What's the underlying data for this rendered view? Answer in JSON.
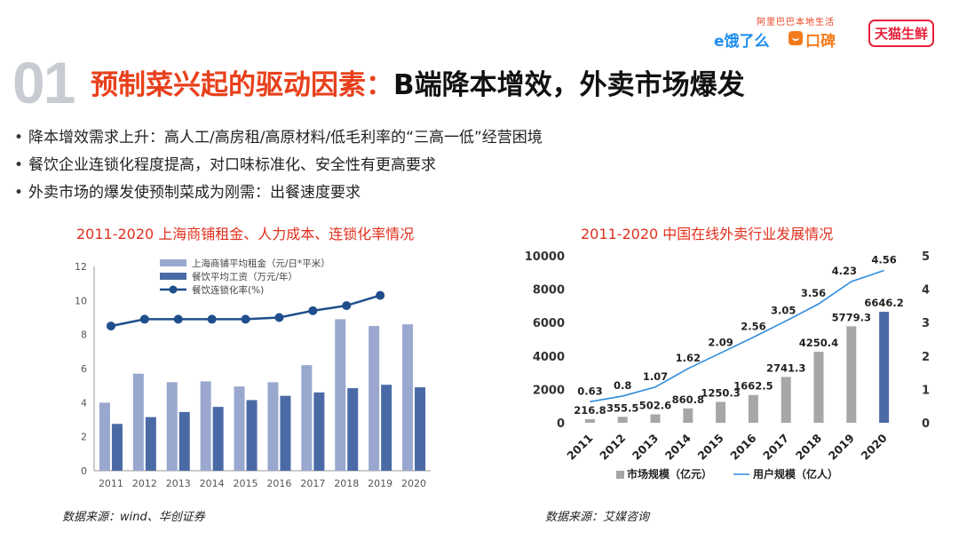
{
  "slide_number": "01",
  "title": {
    "red": "预制菜兴起的驱动因素：",
    "black": "B端降本增效，外卖市场爆发"
  },
  "logos": {
    "tagline": "阿里巴巴本地生活",
    "eleme": "饿了么",
    "koubei": "口碑",
    "tmall": "天猫生鲜"
  },
  "bullets": [
    "降本增效需求上升：高人工/高房租/高原材料/低毛利率的“三高一低”经营困境",
    "餐饮企业连锁化程度提高，对口味标准化、安全性有更高要求",
    "外卖市场的爆发使预制菜成为刚需：出餐速度要求"
  ],
  "bullet_mark": "•",
  "left_chart_title": "2011-2020 上海商铺租金、人力成本、连锁化率情况",
  "right_chart_title": "2011-2020 中国在线外卖行业发展情况",
  "left_source": "数据来源：wind、华创证券",
  "right_source": "数据来源：艾媒咨询",
  "colors": {
    "accent_red": "#e8401c",
    "bar_light": "#9aa8d0",
    "bar_dark": "#4a6aa6",
    "line_dark": "#1f4e8c",
    "bar_gray": "#a6a6a6",
    "bar_highlight": "#4a6aa6",
    "line_blue": "#2e8bdb"
  },
  "chart_data": [
    {
      "type": "bar",
      "title": "2011-2020 上海商铺租金、人力成本、连锁化率情况",
      "categories": [
        "2011",
        "2012",
        "2013",
        "2014",
        "2015",
        "2016",
        "2017",
        "2018",
        "2019",
        "2020"
      ],
      "ylim": [
        0,
        12
      ],
      "yticks": [
        "0",
        "2",
        "4",
        "6",
        "8",
        "10",
        "12"
      ],
      "legend_position": "top",
      "series": [
        {
          "name": "上海商铺平均租金（元/日*平米）",
          "kind": "bar",
          "values": [
            4.0,
            5.7,
            5.2,
            5.25,
            4.95,
            5.2,
            6.2,
            8.9,
            8.5,
            8.6
          ]
        },
        {
          "name": "餐饮平均工资（万元/年）",
          "kind": "bar",
          "values": [
            2.75,
            3.15,
            3.45,
            3.75,
            4.15,
            4.4,
            4.6,
            4.85,
            5.05,
            4.9
          ]
        },
        {
          "name": "餐饮连锁化率(%)",
          "kind": "line",
          "values": [
            8.5,
            8.9,
            8.9,
            8.9,
            8.9,
            9.0,
            9.4,
            9.7,
            10.3,
            null
          ]
        }
      ]
    },
    {
      "type": "bar",
      "title": "2011-2020 中国在线外卖行业发展情况",
      "categories": [
        "2011",
        "2012",
        "2013",
        "2014",
        "2015",
        "2016",
        "2017",
        "2018",
        "2019",
        "2020"
      ],
      "ylim_left": [
        0,
        10000
      ],
      "yticks_left": [
        "0",
        "2000",
        "4000",
        "6000",
        "8000",
        "10000"
      ],
      "ylim_right": [
        0,
        5
      ],
      "yticks_right": [
        "0",
        "1",
        "2",
        "3",
        "4",
        "5"
      ],
      "legend_position": "bottom",
      "series": [
        {
          "name": "市场规模（亿元）",
          "kind": "bar",
          "axis": "left",
          "values": [
            216.8,
            355.5,
            502.6,
            860.8,
            1250.3,
            1662.5,
            2741.3,
            4250.4,
            5779.3,
            6646.2
          ],
          "labels": [
            "216.8",
            "355.5",
            "502.6",
            "860.8",
            "1250.3",
            "1662.5",
            "2741.3",
            "4250.4",
            "5779.3",
            "6646.2"
          ]
        },
        {
          "name": "用户规模（亿人）",
          "kind": "line",
          "axis": "right",
          "values": [
            0.63,
            0.8,
            1.07,
            1.62,
            2.09,
            2.56,
            3.05,
            3.56,
            4.23,
            4.56
          ],
          "labels": [
            "0.63",
            "0.8",
            "1.07",
            "1.62",
            "2.09",
            "2.56",
            "3.05",
            "3.56",
            "4.23",
            "4.56"
          ]
        }
      ]
    }
  ]
}
